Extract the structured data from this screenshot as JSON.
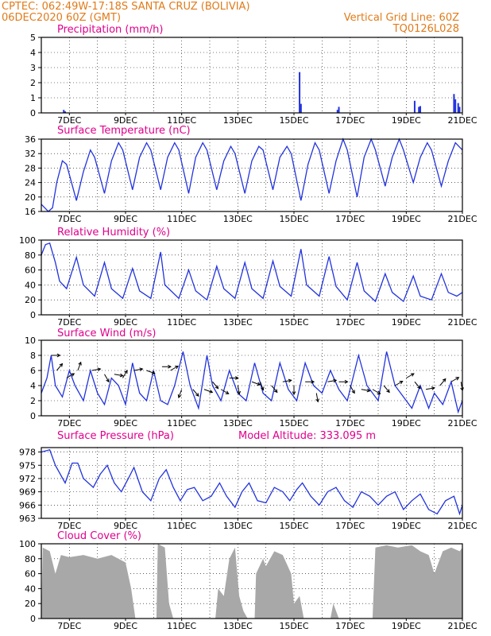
{
  "header": {
    "line1": "CPTEC:  062:49W-17:18S  SANTA CRUZ (BOLIVIA)",
    "line2": "06DEC2020 60Z (GMT)",
    "right1": "Vertical Grid Line: 60Z",
    "right2": "TQ0126L028"
  },
  "colors": {
    "header": "#e07b1a",
    "title": "#e0008c",
    "line": "#2233dd",
    "bar": "#2233dd",
    "cloud": "#a8a8a8"
  },
  "x_labels": [
    "7DEC",
    "9DEC",
    "11DEC",
    "13DEC",
    "15DEC",
    "17DEC",
    "19DEC",
    "21DEC"
  ],
  "chart_data": [
    {
      "type": "bar",
      "title": "Precipitation (mm/h)",
      "ylim": [
        0,
        5
      ],
      "yticks": [
        "0",
        "1",
        "2",
        "3",
        "4",
        "5"
      ],
      "x_unit": "days since 06DEC2020 00Z",
      "points": [
        [
          0.8,
          0.2
        ],
        [
          0.85,
          0.1
        ],
        [
          9.2,
          2.7
        ],
        [
          9.25,
          0.6
        ],
        [
          10.55,
          0.2
        ],
        [
          10.6,
          0.4
        ],
        [
          13.3,
          0.8
        ],
        [
          13.45,
          0.4
        ],
        [
          13.5,
          0.45
        ],
        [
          14.7,
          1.25
        ],
        [
          14.75,
          0.9
        ],
        [
          14.85,
          0.65
        ],
        [
          14.9,
          0.4
        ]
      ]
    },
    {
      "type": "line",
      "title": "Surface Temperature (nC)",
      "ylim": [
        16,
        36
      ],
      "yticks": [
        "16",
        "20",
        "24",
        "28",
        "32",
        "36"
      ],
      "x_unit": "days since 06DEC2020 00Z",
      "points": [
        [
          0,
          18
        ],
        [
          0.25,
          16
        ],
        [
          0.4,
          17
        ],
        [
          0.55,
          24
        ],
        [
          0.75,
          30
        ],
        [
          0.9,
          29
        ],
        [
          1.25,
          19
        ],
        [
          1.5,
          27
        ],
        [
          1.75,
          33
        ],
        [
          1.9,
          31
        ],
        [
          2.25,
          21
        ],
        [
          2.5,
          30
        ],
        [
          2.75,
          35
        ],
        [
          2.9,
          33
        ],
        [
          3.25,
          22
        ],
        [
          3.5,
          31
        ],
        [
          3.75,
          35
        ],
        [
          3.9,
          33
        ],
        [
          4.25,
          22
        ],
        [
          4.5,
          31
        ],
        [
          4.75,
          35
        ],
        [
          4.9,
          33
        ],
        [
          5.25,
          21
        ],
        [
          5.5,
          31
        ],
        [
          5.75,
          35
        ],
        [
          5.9,
          33
        ],
        [
          6.25,
          22
        ],
        [
          6.5,
          30
        ],
        [
          6.75,
          34
        ],
        [
          6.9,
          32
        ],
        [
          7.25,
          21
        ],
        [
          7.5,
          30
        ],
        [
          7.75,
          34
        ],
        [
          7.9,
          33
        ],
        [
          8.25,
          22
        ],
        [
          8.5,
          31
        ],
        [
          8.75,
          34
        ],
        [
          8.9,
          32
        ],
        [
          9.25,
          19
        ],
        [
          9.5,
          29
        ],
        [
          9.75,
          35
        ],
        [
          9.9,
          33
        ],
        [
          10.25,
          21
        ],
        [
          10.5,
          30
        ],
        [
          10.75,
          36
        ],
        [
          10.9,
          33
        ],
        [
          11.25,
          20
        ],
        [
          11.5,
          31
        ],
        [
          11.75,
          36
        ],
        [
          11.9,
          33
        ],
        [
          12.25,
          23
        ],
        [
          12.5,
          31
        ],
        [
          12.75,
          36
        ],
        [
          12.9,
          33
        ],
        [
          13.25,
          24
        ],
        [
          13.5,
          31
        ],
        [
          13.75,
          35
        ],
        [
          13.9,
          33
        ],
        [
          14.25,
          23
        ],
        [
          14.5,
          30
        ],
        [
          14.75,
          35
        ],
        [
          15,
          33
        ]
      ]
    },
    {
      "type": "line",
      "title": "Relative Humidity (%)",
      "ylim": [
        0,
        100
      ],
      "yticks": [
        "0",
        "20",
        "40",
        "60",
        "80",
        "100"
      ],
      "x_unit": "days since 06DEC2020 00Z",
      "points": [
        [
          0,
          80
        ],
        [
          0.15,
          94
        ],
        [
          0.3,
          96
        ],
        [
          0.5,
          70
        ],
        [
          0.65,
          45
        ],
        [
          0.9,
          35
        ],
        [
          1.25,
          77
        ],
        [
          1.5,
          40
        ],
        [
          1.9,
          25
        ],
        [
          2.25,
          70
        ],
        [
          2.5,
          35
        ],
        [
          2.9,
          22
        ],
        [
          3.25,
          62
        ],
        [
          3.5,
          32
        ],
        [
          3.9,
          22
        ],
        [
          4.25,
          84
        ],
        [
          4.4,
          40
        ],
        [
          4.9,
          22
        ],
        [
          5.25,
          60
        ],
        [
          5.5,
          32
        ],
        [
          5.9,
          20
        ],
        [
          6.25,
          65
        ],
        [
          6.5,
          35
        ],
        [
          6.9,
          22
        ],
        [
          7.25,
          70
        ],
        [
          7.5,
          35
        ],
        [
          7.9,
          22
        ],
        [
          8.25,
          72
        ],
        [
          8.5,
          38
        ],
        [
          8.9,
          25
        ],
        [
          9.25,
          88
        ],
        [
          9.45,
          40
        ],
        [
          9.9,
          25
        ],
        [
          10.25,
          78
        ],
        [
          10.5,
          38
        ],
        [
          10.9,
          20
        ],
        [
          11.25,
          70
        ],
        [
          11.5,
          32
        ],
        [
          11.9,
          18
        ],
        [
          12.25,
          55
        ],
        [
          12.5,
          30
        ],
        [
          12.9,
          18
        ],
        [
          13.25,
          52
        ],
        [
          13.5,
          25
        ],
        [
          13.9,
          20
        ],
        [
          14.25,
          55
        ],
        [
          14.5,
          30
        ],
        [
          14.8,
          25
        ],
        [
          15,
          30
        ]
      ]
    },
    {
      "type": "line",
      "title": "Surface Wind (m/s)",
      "ylim": [
        0,
        10
      ],
      "yticks": [
        "0",
        "2",
        "4",
        "6",
        "8",
        "10"
      ],
      "x_unit": "days since 06DEC2020 00Z",
      "points": [
        [
          0,
          3
        ],
        [
          0.2,
          5
        ],
        [
          0.35,
          8
        ],
        [
          0.5,
          4
        ],
        [
          0.75,
          2.5
        ],
        [
          1,
          6
        ],
        [
          1.2,
          4
        ],
        [
          1.5,
          2
        ],
        [
          1.75,
          6
        ],
        [
          2,
          3
        ],
        [
          2.25,
          1.5
        ],
        [
          2.5,
          5
        ],
        [
          2.75,
          4
        ],
        [
          3,
          1.5
        ],
        [
          3.25,
          7
        ],
        [
          3.5,
          3
        ],
        [
          3.75,
          2
        ],
        [
          4,
          6
        ],
        [
          4.25,
          2
        ],
        [
          4.5,
          1.5
        ],
        [
          4.75,
          4
        ],
        [
          5.05,
          8.5
        ],
        [
          5.3,
          4
        ],
        [
          5.6,
          1
        ],
        [
          5.9,
          8
        ],
        [
          6.1,
          4
        ],
        [
          6.4,
          2
        ],
        [
          6.7,
          6
        ],
        [
          7,
          3
        ],
        [
          7.3,
          2
        ],
        [
          7.6,
          7
        ],
        [
          7.9,
          3
        ],
        [
          8.2,
          2
        ],
        [
          8.5,
          7
        ],
        [
          8.8,
          3.5
        ],
        [
          9.1,
          2
        ],
        [
          9.4,
          7
        ],
        [
          9.7,
          4
        ],
        [
          10,
          3
        ],
        [
          10.3,
          6
        ],
        [
          10.6,
          3.5
        ],
        [
          10.9,
          2
        ],
        [
          11.3,
          8
        ],
        [
          11.6,
          4
        ],
        [
          12,
          2
        ],
        [
          12.3,
          8.5
        ],
        [
          12.6,
          4
        ],
        [
          12.9,
          2.5
        ],
        [
          13.2,
          1
        ],
        [
          13.5,
          4
        ],
        [
          13.8,
          1
        ],
        [
          14,
          3
        ],
        [
          14.3,
          1.5
        ],
        [
          14.6,
          4.5
        ],
        [
          14.85,
          0.5
        ],
        [
          15,
          2
        ]
      ]
    },
    {
      "type": "line",
      "title": "Surface Pressure (hPa)",
      "annotation": "Model Altitude: 333.095 m",
      "ylim": [
        963,
        979
      ],
      "yticks": [
        "963",
        "966",
        "969",
        "972",
        "975",
        "978"
      ],
      "x_unit": "days since 06DEC2020 00Z",
      "points": [
        [
          0,
          978
        ],
        [
          0.3,
          978.5
        ],
        [
          0.5,
          975
        ],
        [
          0.85,
          971
        ],
        [
          1.1,
          975.5
        ],
        [
          1.3,
          975.5
        ],
        [
          1.5,
          972
        ],
        [
          1.85,
          970
        ],
        [
          2.1,
          973
        ],
        [
          2.35,
          975
        ],
        [
          2.6,
          971
        ],
        [
          2.85,
          969
        ],
        [
          3.1,
          972
        ],
        [
          3.3,
          974.5
        ],
        [
          3.6,
          969
        ],
        [
          3.9,
          967
        ],
        [
          4.2,
          972
        ],
        [
          4.45,
          974
        ],
        [
          4.7,
          970
        ],
        [
          4.95,
          967
        ],
        [
          5.2,
          969.5
        ],
        [
          5.45,
          970
        ],
        [
          5.75,
          967
        ],
        [
          6.05,
          968
        ],
        [
          6.35,
          971
        ],
        [
          6.6,
          968
        ],
        [
          6.9,
          965.5
        ],
        [
          7.15,
          969
        ],
        [
          7.4,
          971
        ],
        [
          7.7,
          967
        ],
        [
          8,
          966.5
        ],
        [
          8.3,
          970
        ],
        [
          8.6,
          969
        ],
        [
          8.85,
          967
        ],
        [
          9.1,
          969.5
        ],
        [
          9.3,
          971
        ],
        [
          9.6,
          968
        ],
        [
          9.9,
          966
        ],
        [
          10.2,
          969
        ],
        [
          10.5,
          970
        ],
        [
          10.8,
          967
        ],
        [
          11.1,
          965.5
        ],
        [
          11.4,
          969
        ],
        [
          11.7,
          968
        ],
        [
          12,
          966
        ],
        [
          12.3,
          968
        ],
        [
          12.6,
          969
        ],
        [
          12.9,
          965
        ],
        [
          13.2,
          967
        ],
        [
          13.5,
          968.5
        ],
        [
          13.8,
          965
        ],
        [
          14.1,
          964
        ],
        [
          14.4,
          967
        ],
        [
          14.7,
          968
        ],
        [
          14.9,
          964
        ],
        [
          15,
          966
        ]
      ]
    },
    {
      "type": "area",
      "title": "Cloud Cover (%)",
      "ylim": [
        0,
        100
      ],
      "yticks": [
        "0",
        "20",
        "40",
        "60",
        "80",
        "100"
      ],
      "x_unit": "days since 06DEC2020 00Z",
      "points": [
        [
          0,
          0
        ],
        [
          0.05,
          95
        ],
        [
          0.3,
          90
        ],
        [
          0.5,
          60
        ],
        [
          0.7,
          85
        ],
        [
          1,
          82
        ],
        [
          1.5,
          85
        ],
        [
          2,
          80
        ],
        [
          2.5,
          85
        ],
        [
          3,
          75
        ],
        [
          3.2,
          40
        ],
        [
          3.35,
          0
        ],
        [
          4.1,
          0
        ],
        [
          4.15,
          100
        ],
        [
          4.4,
          95
        ],
        [
          4.55,
          20
        ],
        [
          4.7,
          0
        ],
        [
          6.2,
          0
        ],
        [
          6.3,
          40
        ],
        [
          6.5,
          30
        ],
        [
          6.7,
          80
        ],
        [
          6.9,
          95
        ],
        [
          7.05,
          30
        ],
        [
          7.2,
          10
        ],
        [
          7.35,
          0
        ],
        [
          7.6,
          0
        ],
        [
          7.65,
          60
        ],
        [
          7.9,
          80
        ],
        [
          8,
          70
        ],
        [
          8.3,
          90
        ],
        [
          8.6,
          85
        ],
        [
          8.9,
          60
        ],
        [
          9,
          20
        ],
        [
          9.2,
          30
        ],
        [
          9.35,
          0
        ],
        [
          10.3,
          0
        ],
        [
          10.4,
          20
        ],
        [
          10.6,
          0
        ],
        [
          11.8,
          0
        ],
        [
          11.9,
          95
        ],
        [
          12.3,
          98
        ],
        [
          12.7,
          95
        ],
        [
          13.2,
          98
        ],
        [
          13.5,
          90
        ],
        [
          13.8,
          85
        ],
        [
          14,
          60
        ],
        [
          14.3,
          90
        ],
        [
          14.6,
          95
        ],
        [
          14.9,
          90
        ],
        [
          15,
          95
        ]
      ]
    }
  ],
  "wind_arrows": [
    [
      0.35,
      8,
      90
    ],
    [
      0.55,
      6,
      40
    ],
    [
      0.9,
      5,
      60
    ],
    [
      1.3,
      6,
      20
    ],
    [
      1.8,
      6,
      80
    ],
    [
      2.25,
      5.5,
      150
    ],
    [
      2.6,
      5.5,
      100
    ],
    [
      2.9,
      5,
      30
    ],
    [
      3.3,
      6,
      80
    ],
    [
      3.75,
      6,
      110
    ],
    [
      4.3,
      6.5,
      90
    ],
    [
      4.6,
      6,
      60
    ],
    [
      5,
      3.5,
      200
    ],
    [
      5.4,
      3.5,
      140
    ],
    [
      5.8,
      3.5,
      110
    ],
    [
      6.1,
      4.5,
      140
    ],
    [
      6.4,
      3.5,
      120
    ],
    [
      6.7,
      5,
      90
    ],
    [
      7,
      4,
      170
    ],
    [
      7.5,
      4.5,
      110
    ],
    [
      7.8,
      4.5,
      160
    ],
    [
      8.2,
      4,
      140
    ],
    [
      8.6,
      4.5,
      80
    ],
    [
      9,
      4,
      180
    ],
    [
      9.4,
      4.5,
      90
    ],
    [
      9.8,
      3,
      170
    ],
    [
      10.2,
      4.5,
      80
    ],
    [
      10.6,
      4.5,
      90
    ],
    [
      11,
      4,
      150
    ],
    [
      11.4,
      3.5,
      100
    ],
    [
      11.8,
      3.5,
      120
    ],
    [
      12.2,
      4,
      140
    ],
    [
      12.6,
      4,
      60
    ],
    [
      13,
      5,
      60
    ],
    [
      13.3,
      4.5,
      140
    ],
    [
      13.7,
      3.5,
      80
    ],
    [
      14.2,
      4,
      40
    ],
    [
      14.6,
      4.5,
      60
    ],
    [
      14.95,
      4.5,
      170
    ]
  ]
}
